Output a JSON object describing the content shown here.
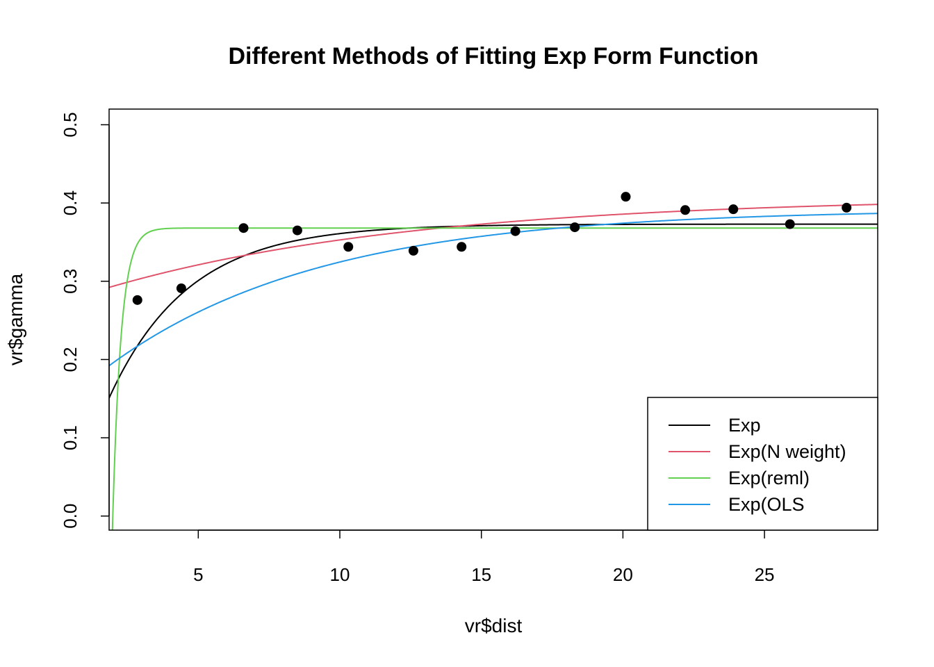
{
  "chart_data": {
    "type": "scatter",
    "title": "Different Methods of Fitting Exp Form Function",
    "xlabel": "vr$dist",
    "ylabel": "vr$gamma",
    "xlim": [
      1.85,
      29
    ],
    "ylim": [
      -0.018,
      0.52
    ],
    "x_ticks": [
      5,
      10,
      15,
      20,
      25
    ],
    "x_tick_labels": [
      "5",
      "10",
      "15",
      "20",
      "25"
    ],
    "y_ticks": [
      0.0,
      0.1,
      0.2,
      0.3,
      0.4,
      0.5
    ],
    "y_tick_labels": [
      "0.0",
      "0.1",
      "0.2",
      "0.3",
      "0.4",
      "0.5"
    ],
    "grid": false,
    "legend_position": "bottom-right",
    "points": {
      "color": "#000000",
      "x": [
        2.85,
        4.4,
        6.6,
        8.5,
        10.3,
        12.6,
        14.3,
        16.2,
        18.3,
        20.1,
        22.2,
        23.9,
        25.9,
        27.9
      ],
      "y": [
        0.276,
        0.291,
        0.368,
        0.365,
        0.344,
        0.339,
        0.344,
        0.364,
        0.369,
        0.408,
        0.391,
        0.392,
        0.373,
        0.394
      ]
    },
    "series": [
      {
        "name": "Exp",
        "color": "#000000",
        "model": "exp",
        "sill": 0.373,
        "range": 2.8,
        "x0": 0.4
      },
      {
        "name": "Exp(N weight)",
        "color": "#DF536B",
        "model": "exp",
        "sill": 0.408,
        "range": 11.0,
        "x0": -12.0
      },
      {
        "name": "Exp(reml)",
        "color": "#61D04F",
        "model": "exp",
        "sill": 0.368,
        "range": 0.3,
        "x0": 1.98
      },
      {
        "name": "Exp(OLS",
        "color": "#2297E6",
        "model": "exp",
        "sill": 0.392,
        "range": 7.5,
        "x0": -3.2
      }
    ]
  }
}
